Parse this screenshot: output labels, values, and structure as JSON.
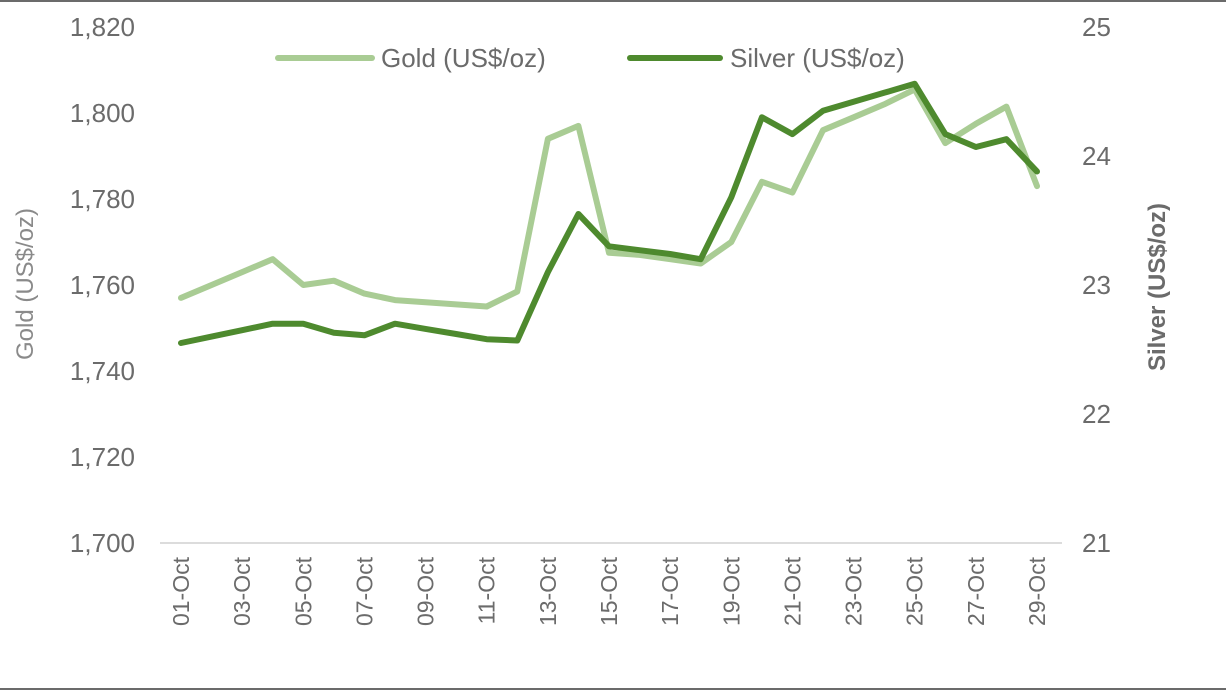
{
  "chart_data": {
    "type": "line",
    "x": [
      "01-Oct",
      "02-Oct",
      "03-Oct",
      "04-Oct",
      "05-Oct",
      "06-Oct",
      "07-Oct",
      "08-Oct",
      "09-Oct",
      "10-Oct",
      "11-Oct",
      "12-Oct",
      "13-Oct",
      "14-Oct",
      "15-Oct",
      "16-Oct",
      "17-Oct",
      "18-Oct",
      "19-Oct",
      "20-Oct",
      "21-Oct",
      "22-Oct",
      "23-Oct",
      "24-Oct",
      "25-Oct",
      "26-Oct",
      "27-Oct",
      "28-Oct",
      "29-Oct"
    ],
    "xtick_labels": [
      "01-Oct",
      "03-Oct",
      "05-Oct",
      "07-Oct",
      "09-Oct",
      "11-Oct",
      "13-Oct",
      "15-Oct",
      "17-Oct",
      "19-Oct",
      "21-Oct",
      "23-Oct",
      "25-Oct",
      "27-Oct",
      "29-Oct"
    ],
    "series": [
      {
        "name": "Gold (US$/oz)",
        "axis": "left",
        "color": "#a9cc94",
        "values": [
          1757,
          1760,
          1763,
          1766,
          1760,
          1761,
          1758,
          1756.5,
          1756,
          1755.5,
          1755,
          1758.5,
          1794,
          1797,
          1767.5,
          1767,
          1766,
          1765,
          1770,
          1784,
          1781.5,
          1796,
          1799,
          1802,
          1805.5,
          1793,
          1797.5,
          1801.5,
          1783
        ]
      },
      {
        "name": "Silver (US$/oz)",
        "axis": "right",
        "color": "#4e8a2e",
        "values": [
          22.55,
          22.6,
          22.65,
          22.7,
          22.7,
          22.63,
          22.61,
          22.7,
          22.66,
          22.62,
          22.58,
          22.57,
          23.1,
          23.55,
          23.3,
          23.27,
          23.24,
          23.2,
          23.68,
          24.3,
          24.17,
          24.35,
          24.42,
          24.49,
          24.56,
          24.17,
          24.07,
          24.13,
          23.88
        ]
      }
    ],
    "y_left": {
      "label": "Gold (US$/oz)",
      "ylim": [
        1700,
        1820
      ],
      "ticks": [
        "1,700",
        "1,720",
        "1,740",
        "1,760",
        "1,780",
        "1,800",
        "1,820"
      ]
    },
    "y_right": {
      "label": "Silver  (US$/oz)",
      "ylim": [
        21,
        25
      ],
      "ticks": [
        "21",
        "22",
        "23",
        "24",
        "25"
      ]
    },
    "legend_placement": "top-center",
    "grid": false
  }
}
